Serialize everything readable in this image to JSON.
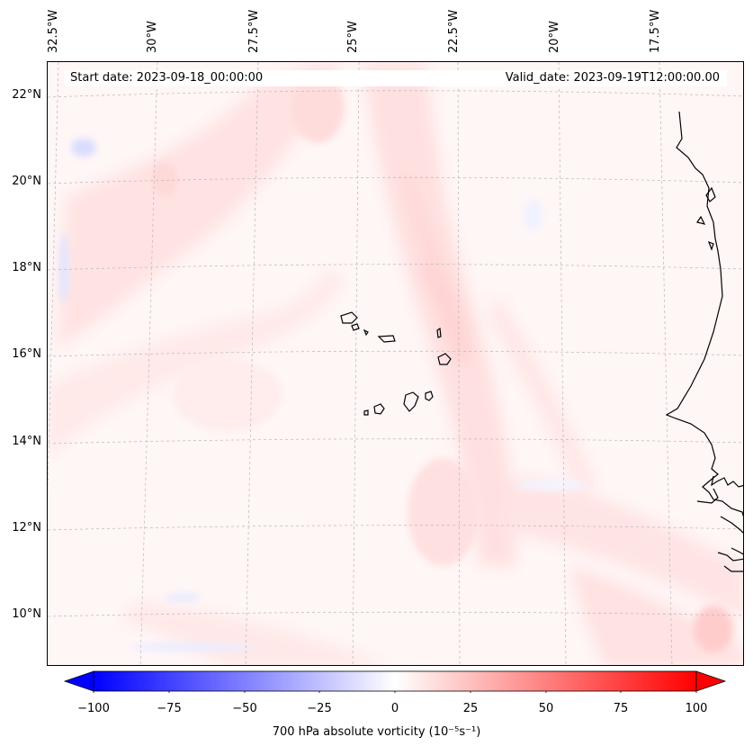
{
  "map": {
    "start_date_text": "Start date: 2023-09-18_00:00:00",
    "valid_date_text": "Valid_date: 2023-09-19T12:00:00.00",
    "longitude_labels": [
      "32.5°W",
      "30°W",
      "27.5°W",
      "25°W",
      "22.5°W",
      "20°W",
      "17.5°W"
    ],
    "latitude_labels": [
      "22°N",
      "20°N",
      "18°N",
      "16°N",
      "14°N",
      "12°N",
      "10°N"
    ],
    "gridlines": "dashed",
    "region": "Eastern tropical Atlantic, Cape Verde Islands and West African coast"
  },
  "colorbar": {
    "label": "700 hPa absolute vorticity (10⁻⁵s⁻¹)",
    "tick_labels": [
      "−100",
      "−75",
      "−50",
      "−25",
      "0",
      "25",
      "50",
      "75",
      "100"
    ],
    "range": [
      -100,
      100
    ],
    "colormap": "bwr",
    "extend": "both",
    "color_min": "#0000ff",
    "color_mid": "#ffffff",
    "color_max": "#ff0000"
  }
}
